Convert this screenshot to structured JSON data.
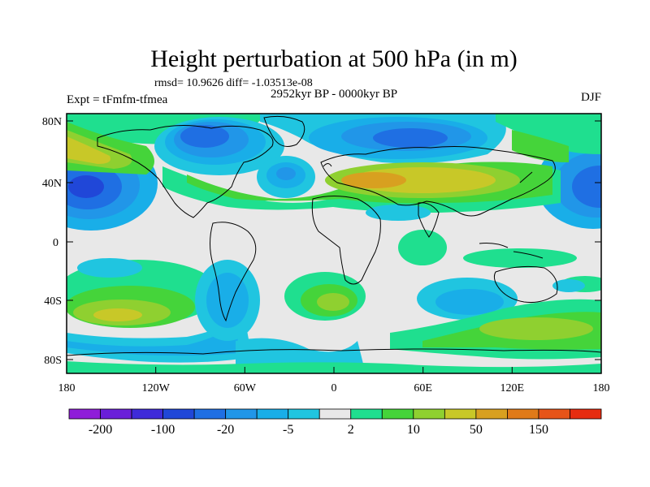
{
  "title": "Height perturbation at 500 hPa (in m)",
  "stats_line": "rmsd= 10.9626 diff= -1.03513e-08",
  "time_label": "2952kyr BP - 0000kyr BP",
  "left_label": "Expt = tFmfm-tfmea",
  "right_label": "DJF",
  "lat_ticks": [
    "80N",
    "40N",
    "0",
    "40S",
    "80S"
  ],
  "lon_ticks": [
    "180",
    "120W",
    "60W",
    "0",
    "60E",
    "120E",
    "180"
  ],
  "colorbar": {
    "colors": [
      "#8f1dd9",
      "#6a1fd9",
      "#3f2bd9",
      "#2047d8",
      "#1f6fe3",
      "#2196e8",
      "#19aee8",
      "#20c5e0",
      "#e8e8e8",
      "#1fdf8f",
      "#45d43a",
      "#8fd030",
      "#c8c828",
      "#d8a020",
      "#e07a18",
      "#e65418",
      "#e62c10"
    ],
    "labels": [
      "-200",
      "-100",
      "-20",
      "-5",
      "2",
      "10",
      "50",
      "150"
    ]
  },
  "map": {
    "lat_range": [
      -90,
      90
    ],
    "lon_range": [
      -180,
      180
    ],
    "fill_color": "#e8e8e8"
  }
}
